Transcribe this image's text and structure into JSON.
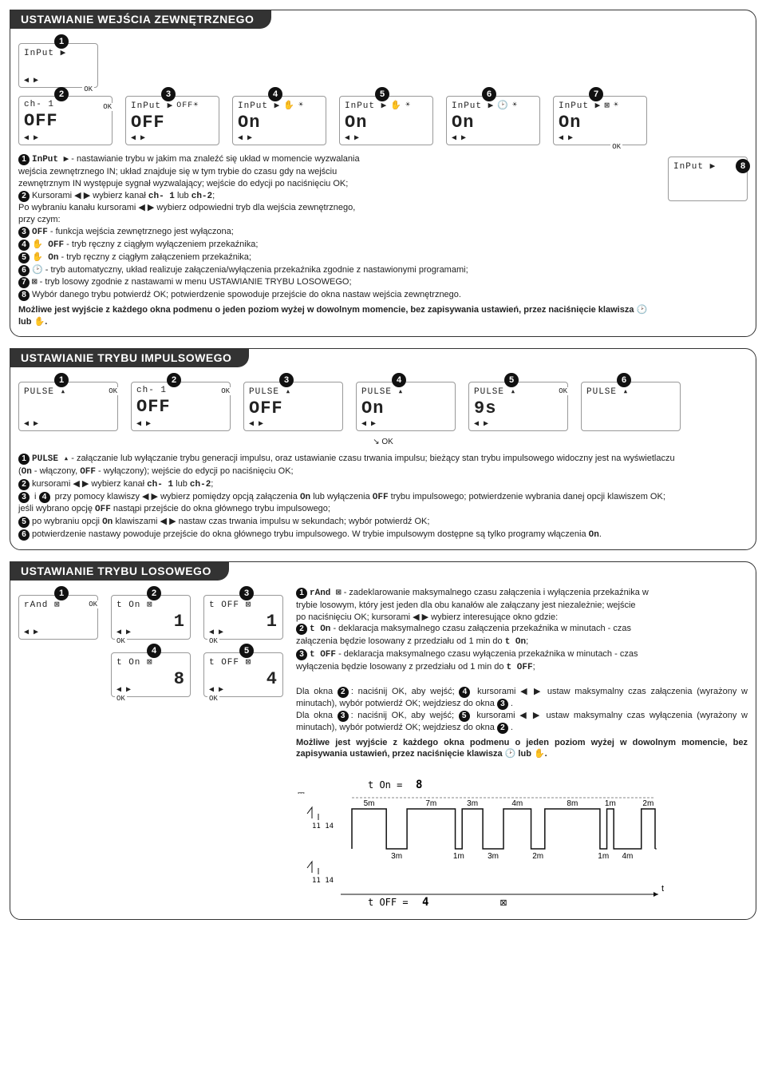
{
  "ext": {
    "title": "USTAWIANIE WEJŚCIA ZEWNĘTRZNEGO",
    "boxes": {
      "n1": "1",
      "top1": "InPut ▶",
      "n2": "2",
      "top2": "ch- 1",
      "main2": "OFF",
      "n3": "3",
      "top3": "InPut ▶",
      "main3": "OFF",
      "n4": "4",
      "top4": "InPut ▶",
      "main4": "On",
      "n5": "5",
      "top5": "InPut ▶",
      "main5": "On",
      "n6": "6",
      "top6": "InPut ▶",
      "main6": "On",
      "n7": "7",
      "top7": "InPut ▶",
      "main7": "On",
      "n8": "8",
      "top8": "InPut ▶"
    },
    "d1a": " - nastawianie trybu w jakim ma znaleźć się układ w momencie wyzwalania",
    "d1b": "wejścia zewnętrznego IN; układ znajduje się w tym trybie do czasu gdy na wejściu",
    "d1c": "zewnętrznym IN występuje sygnał wyzwalający; wejście do edycji po naciśnięciu OK;",
    "d2a": "Kursorami ◀ ▶ wybierz kanał ",
    "d2b": " lub ",
    "d2c": ";",
    "ch1": "ch- 1",
    "ch2": "ch-2",
    "d2d": "Po wybraniu kanału kursorami ◀ ▶ wybierz odpowiedni tryb dla wejścia zewnętrznego,",
    "d2e": "przy czym:",
    "d3": " - funkcja wejścia zewnętrznego jest wyłączona;",
    "d4": " - tryb ręczny z ciągłym wyłączeniem przekaźnika;",
    "d5": " - tryb ręczny z ciągłym załączeniem przekaźnika;",
    "d6": " - tryb automatyczny, układ realizuje załączenia/wyłączenia przekaźnika zgodnie z nastawionymi programami;",
    "d7": " - tryb losowy zgodnie z nastawami w menu USTAWIANIE TRYBU LOSOWEGO;",
    "d8": "Wybór danego trybu potwierdź OK; potwierdzenie spowoduje przejście do okna nastaw wejścia zewnętrznego.",
    "c3": "OFF",
    "c4": "✋ OFF",
    "c5": "✋ On",
    "c6": "🕑",
    "c7": "⊠",
    "note": "Możliwe jest wyjście z każdego okna podmenu o jeden poziom wyżej w dowolnym momencie, bez zapisywania ustawień, przez naciśnięcie klawisza 🕑 lub ✋."
  },
  "pulse": {
    "title": "USTAWIANIE TRYBU IMPULSOWEGO",
    "boxes": {
      "n1": "1",
      "t1": "PULSE ▴",
      "n2": "2",
      "t2": "ch- 1",
      "m2": "OFF",
      "n3": "3",
      "t3": "PULSE ▴",
      "m3": "OFF",
      "n4": "4",
      "t4": "PULSE ▴",
      "m4": "On",
      "n5": "5",
      "t5": "PULSE ▴",
      "m5": "9s",
      "n6": "6",
      "t6": "PULSE ▴"
    },
    "p1a": " - załączanie lub wyłączanie trybu generacji impulsu, oraz ustawianie czasu trwania impulsu; bieżący stan trybu impulsowego widoczny jest na wyświetlaczu",
    "p1b": "(",
    "p1c": " - włączony, ",
    "p1d": " - wyłączony); wejście do edycji po naciśnięciu OK;",
    "on": "On",
    "off": "OFF",
    "p2": "kursorami ◀ ▶ wybierz kanał ",
    "p2b": " lub ",
    "p2c": ";",
    "p34a": " i ",
    "p34b": " przy pomocy klawiszy ◀ ▶ wybierz pomiędzy opcją załączenia ",
    "p34c": " lub wyłączenia ",
    "p34d": " trybu impulsowego; potwierdzenie wybrania danej opcji klawiszem OK;",
    "p34e": "jeśli wybrano opcję ",
    "p34f": " nastąpi przejście do okna głównego trybu impulsowego;",
    "p5a": "po wybraniu opcji ",
    "p5b": " klawiszami ◀ ▶ nastaw czas trwania impulsu w sekundach; wybór potwierdź OK;",
    "p6a": "potwierdzenie nastawy powoduje przejście do okna głównego trybu impulsowego. W trybie impulsowym dostępne są tylko programy włączenia ",
    "p6b": "."
  },
  "rand": {
    "title": "USTAWIANIE TRYBU LOSOWEGO",
    "boxes": {
      "n1": "1",
      "t1": "rAnd ⊠",
      "n2": "2",
      "t2": "t  On      ⊠",
      "m2": "1",
      "n3": "3",
      "t3": "t  OFF     ⊠",
      "m3": "1",
      "n4": "4",
      "t4": "t  On      ⊠",
      "m4": "8",
      "n5": "5",
      "t5": "t  OFF     ⊠",
      "m5": "4"
    },
    "r1a": " - zadeklarowanie maksymalnego czasu załączenia i wyłączenia przekaźnika w",
    "r1b": "trybie losowym, który jest jeden dla obu kanałów ale załączany jest niezależnie; wejście",
    "r1c": "po naciśnięciu OK; kursorami ◀ ▶ wybierz interesujące okno gdzie:",
    "rAnd": "rAnd ⊠",
    "r2a": " - deklaracja maksymalnego czasu załączenia przekaźnika w minutach - czas",
    "r2b": "załączenia będzie losowany z przedziału od 1 min do ",
    "tOn": "t On",
    "r3a": " - deklaracja maksymalnego czasu wyłączenia przekaźnika w minutach - czas",
    "r3b": "wyłączenia będzie losowany z przedziału od 1 min do ",
    "tOff": "t OFF",
    "inst2": "Dla okna <span class='bullet'>2</span>: naciśnij OK, aby wejść; <span class='bullet'>4</span> kursorami ◀ ▶ ustaw maksymalny czas załączenia (wyrażony w minutach), wybór potwierdź OK;  wejdziesz do okna <span class='bullet'>3</span>.",
    "inst3": "Dla okna <span class='bullet'>3</span>: naciśnij OK, aby wejść; <span class='bullet'>5</span> kursorami ◀ ▶ ustaw maksymalny czas wyłączenia (wyrażony w minutach), wybór potwierdź OK; wejdziesz do okna <span class='bullet'>2</span>.",
    "note": "Możliwe jest wyjście z każdego okna podmenu o jeden poziom wyżej w dowolnym momencie, bez zapisywania ustawień, przez naciśnięcie klawisza 🕑 lub ✋.",
    "timing": {
      "tOnVal": "8",
      "tOffVal": "4",
      "topRow": [
        "5m",
        "7m",
        "3m",
        "4m",
        "8m",
        "1m",
        "2m"
      ],
      "botRow": [
        "3m",
        "1m",
        "3m",
        "2m",
        "1m",
        "4m"
      ],
      "bar_color": "#111",
      "grid_color": "#888",
      "tOnLabel": "t  On = ",
      "tOffLabel": "t  OFF = ",
      "terminal": "11  14",
      "t": "t"
    }
  },
  "ok": "OK"
}
